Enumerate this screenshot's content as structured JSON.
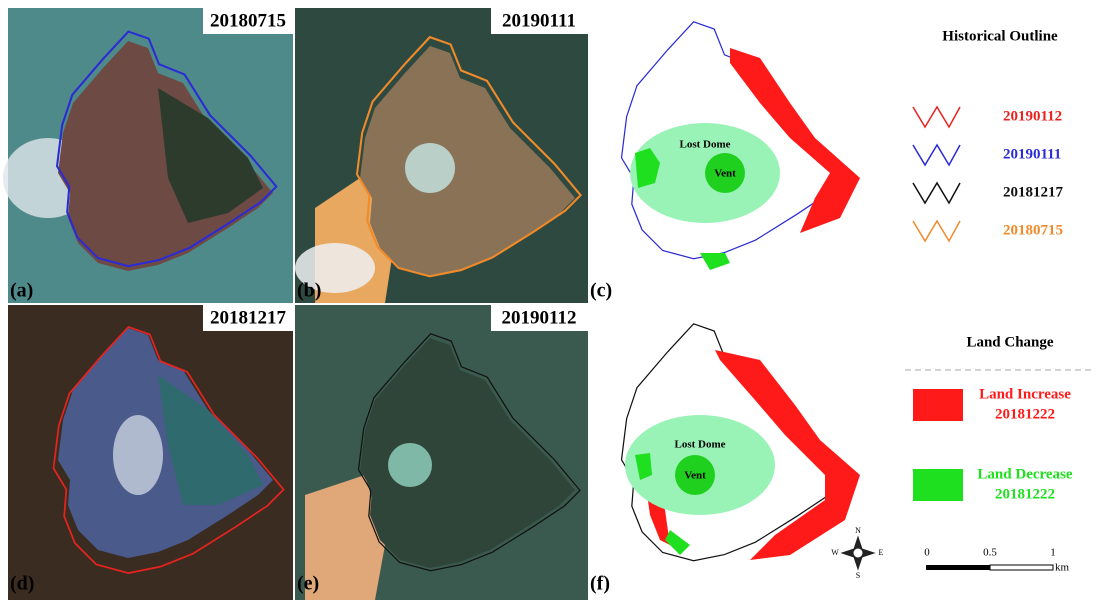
{
  "panels": [
    {
      "label": "(a)",
      "date": "20180715"
    },
    {
      "label": "(b)",
      "date": "20190111"
    },
    {
      "label": "(c)",
      "dome": "Lost Dome",
      "vent": "Vent"
    },
    {
      "label": "(d)",
      "date": "20181217"
    },
    {
      "label": "(e)",
      "date": "20190112"
    },
    {
      "label": "(f)",
      "dome": "Lost Dome",
      "vent": "Vent"
    }
  ],
  "outline_legend": {
    "title": "Historical  Outline",
    "items": [
      {
        "label": "20190112",
        "color": "#e8231f"
      },
      {
        "label": "20190111",
        "color": "#2b2bd6"
      },
      {
        "label": "20181217",
        "color": "#111111"
      },
      {
        "label": "20180715",
        "color": "#f08a2a"
      }
    ]
  },
  "change_legend": {
    "title": "Land Change",
    "items": [
      {
        "label": "Land  Increase",
        "date": "20181222",
        "color": "#ff1a1a"
      },
      {
        "label": "Land  Decrease",
        "date": "20181222",
        "color": "#1fe01f"
      }
    ]
  },
  "compass": {
    "n": "N",
    "s": "S",
    "e": "E",
    "w": "W"
  },
  "scale_bar": {
    "ticks": [
      "0",
      "0.5",
      "1"
    ],
    "unit": "km"
  }
}
